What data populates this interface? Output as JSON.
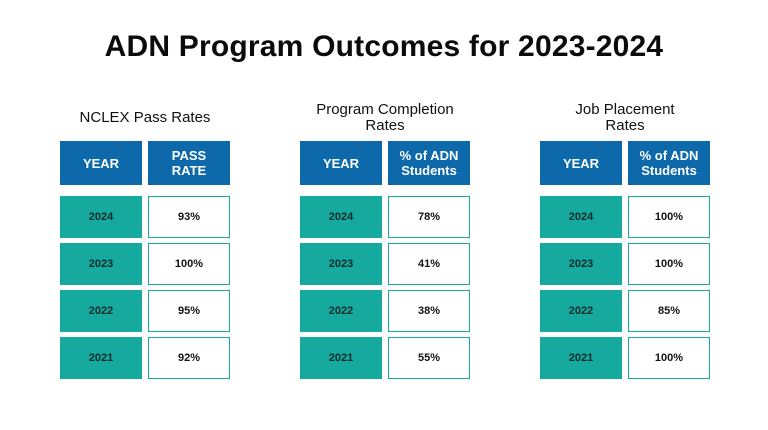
{
  "title": "ADN Program Outcomes for 2023-2024",
  "colors": {
    "header_blue": "#0e69ab",
    "year_teal": "#16a99d"
  },
  "panels": [
    {
      "title": "NCLEX Pass Rates",
      "header_year": "YEAR",
      "header_value": "PASS RATE",
      "rows": [
        {
          "year": "2024",
          "value": "93%"
        },
        {
          "year": "2023",
          "value": "100%"
        },
        {
          "year": "2022",
          "value": "95%"
        },
        {
          "year": "2021",
          "value": "92%"
        }
      ]
    },
    {
      "title": "Program Completion Rates",
      "header_year": "YEAR",
      "header_value": "% of ADN Students",
      "rows": [
        {
          "year": "2024",
          "value": "78%"
        },
        {
          "year": "2023",
          "value": "41%"
        },
        {
          "year": "2022",
          "value": "38%"
        },
        {
          "year": "2021",
          "value": "55%"
        }
      ]
    },
    {
      "title": "Job Placement Rates",
      "header_year": "YEAR",
      "header_value": "% of ADN Students",
      "rows": [
        {
          "year": "2024",
          "value": "100%"
        },
        {
          "year": "2023",
          "value": "100%"
        },
        {
          "year": "2022",
          "value": "85%"
        },
        {
          "year": "2021",
          "value": "100%"
        }
      ]
    }
  ]
}
